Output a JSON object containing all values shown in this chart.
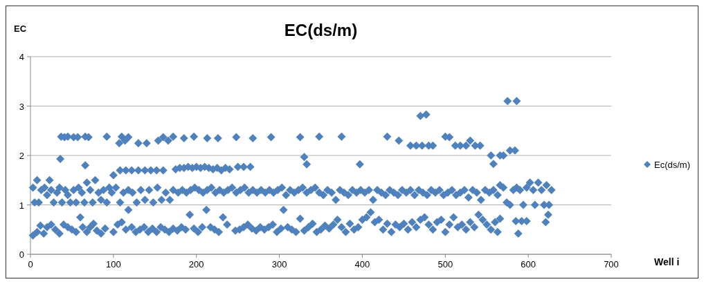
{
  "chart_data": {
    "type": "scatter",
    "title": "EC(ds/m)",
    "xlabel": "Well i",
    "ylabel": "EC",
    "xlim": [
      0,
      700
    ],
    "xticks": [
      0,
      100,
      200,
      300,
      400,
      500,
      600,
      700
    ],
    "ylim": [
      0,
      4
    ],
    "yticks": [
      0,
      1,
      2,
      3,
      4
    ],
    "grid": "y",
    "legend": "right",
    "marker": "diamond",
    "series": [
      {
        "name": "Ec(ds/m)",
        "color": "#4f81bd",
        "x": [
          3,
          5,
          8,
          10,
          13,
          17,
          20,
          23,
          25,
          28,
          32,
          35,
          38,
          42,
          45,
          48,
          52,
          55,
          58,
          62,
          65,
          68,
          72,
          75,
          78,
          82,
          85,
          88,
          92,
          95,
          98,
          103,
          108,
          112,
          118,
          123,
          128,
          133,
          138,
          143,
          148,
          153,
          158,
          163,
          168,
          172,
          178,
          183,
          188,
          193,
          198,
          203,
          208,
          213,
          218,
          223,
          228,
          233,
          238,
          243,
          248,
          253,
          258,
          263,
          268,
          273,
          278,
          283,
          288,
          293,
          298,
          303,
          308,
          313,
          318,
          323,
          328,
          333,
          338,
          343,
          348,
          353,
          358,
          363,
          368,
          373,
          378,
          383,
          388,
          393,
          398,
          403,
          408,
          413,
          418,
          423,
          428,
          433,
          438,
          443,
          448,
          453,
          458,
          463,
          468,
          473,
          478,
          483,
          488,
          493,
          498,
          503,
          508,
          513,
          518,
          523,
          528,
          533,
          538,
          543,
          548,
          553,
          558,
          563,
          566,
          570,
          574,
          578,
          582,
          586,
          590,
          594,
          598,
          602,
          606,
          608,
          612,
          616,
          619,
          622,
          625,
          628,
          3,
          8,
          12,
          16,
          20,
          25,
          30,
          35,
          40,
          45,
          50,
          55,
          60,
          63,
          68,
          72,
          76,
          80,
          85,
          90,
          100,
          105,
          110,
          115,
          118,
          122,
          127,
          132,
          137,
          142,
          147,
          152,
          157,
          162,
          167,
          172,
          177,
          182,
          187,
          192,
          197,
          202,
          207,
          212,
          217,
          222,
          227,
          232,
          237,
          247,
          252,
          257,
          262,
          267,
          272,
          277,
          282,
          287,
          292,
          297,
          302,
          305,
          310,
          315,
          320,
          325,
          330,
          335,
          340,
          345,
          350,
          355,
          360,
          365,
          370,
          375,
          380,
          385,
          390,
          395,
          400,
          405,
          410,
          415,
          420,
          425,
          430,
          435,
          440,
          445,
          450,
          455,
          460,
          465,
          470,
          475,
          480,
          485,
          490,
          495,
          500,
          505,
          510,
          515,
          520,
          525,
          530,
          535,
          540,
          545,
          550,
          555,
          560,
          563,
          566,
          585,
          588,
          592,
          598,
          621,
          624,
          100,
          108,
          115,
          122,
          130,
          138,
          145,
          152,
          160,
          175,
          180,
          185,
          190,
          195,
          200,
          205,
          210,
          215,
          220,
          225,
          230,
          235,
          240,
          250,
          257,
          265,
          36,
          66,
          330,
          333,
          397,
          37,
          41,
          45,
          52,
          57,
          66,
          70,
          92,
          107,
          110,
          114,
          118,
          130,
          140,
          154,
          160,
          166,
          172,
          185,
          197,
          213,
          226,
          248,
          268,
          290,
          325,
          348,
          375,
          430,
          444,
          458,
          465,
          472,
          480,
          485,
          500,
          505,
          512,
          518,
          525,
          530,
          536,
          542,
          555,
          558,
          566,
          570,
          578,
          584,
          470,
          477,
          575,
          586
        ],
        "values": [
          1.35,
          1.05,
          1.5,
          1.05,
          1.3,
          1.35,
          1.2,
          1.5,
          1.3,
          1.05,
          1.25,
          1.35,
          1.05,
          1.3,
          1.2,
          1.05,
          1.3,
          1.05,
          1.35,
          1.25,
          1.05,
          1.45,
          1.3,
          1.05,
          1.5,
          1.25,
          1.1,
          1.3,
          1.05,
          1.35,
          1.25,
          1.35,
          1.05,
          1.25,
          1.3,
          1.25,
          1.05,
          1.3,
          1.1,
          1.3,
          1.05,
          1.35,
          1.1,
          1.25,
          1.1,
          1.3,
          1.25,
          1.3,
          1.25,
          1.3,
          1.35,
          1.3,
          1.25,
          1.3,
          1.35,
          1.25,
          1.3,
          1.25,
          1.3,
          1.35,
          1.25,
          1.3,
          1.35,
          1.25,
          1.3,
          1.25,
          1.3,
          1.25,
          1.3,
          1.25,
          1.3,
          1.35,
          1.2,
          1.3,
          1.25,
          1.3,
          1.35,
          1.25,
          1.3,
          1.35,
          1.25,
          1.2,
          1.3,
          1.25,
          1.1,
          1.3,
          1.25,
          1.2,
          1.3,
          1.25,
          1.3,
          1.25,
          1.3,
          1.1,
          1.3,
          1.25,
          1.2,
          1.3,
          1.25,
          1.2,
          1.3,
          1.25,
          1.3,
          1.2,
          1.3,
          1.25,
          1.2,
          1.3,
          1.25,
          1.3,
          1.2,
          1.25,
          1.3,
          1.2,
          1.25,
          1.3,
          1.15,
          1.3,
          1.25,
          1.1,
          1.3,
          1.25,
          1.3,
          1.2,
          1.4,
          1.35,
          1.05,
          1.0,
          1.3,
          1.35,
          1.3,
          1.0,
          1.35,
          1.45,
          1.3,
          1.0,
          1.45,
          1.3,
          1.0,
          1.4,
          1.0,
          1.3,
          0.38,
          0.45,
          0.58,
          0.42,
          0.55,
          0.6,
          0.5,
          0.42,
          0.6,
          0.55,
          0.5,
          0.45,
          0.75,
          0.55,
          0.45,
          0.55,
          0.62,
          0.48,
          0.42,
          0.52,
          0.45,
          0.6,
          0.65,
          0.5,
          0.9,
          0.55,
          0.45,
          0.5,
          0.55,
          0.45,
          0.52,
          0.45,
          0.55,
          0.5,
          0.45,
          0.52,
          0.48,
          0.55,
          0.5,
          0.8,
          0.52,
          0.45,
          0.55,
          0.9,
          0.55,
          0.5,
          0.45,
          0.75,
          0.6,
          0.48,
          0.5,
          0.55,
          0.6,
          0.52,
          0.48,
          0.55,
          0.5,
          0.55,
          0.6,
          0.45,
          0.52,
          0.9,
          0.55,
          0.5,
          0.45,
          0.72,
          0.48,
          0.55,
          0.62,
          0.45,
          0.5,
          0.58,
          0.52,
          0.6,
          0.7,
          0.55,
          0.45,
          0.62,
          0.5,
          0.55,
          0.7,
          0.75,
          0.85,
          0.65,
          0.7,
          0.5,
          0.62,
          0.45,
          0.6,
          0.55,
          0.62,
          0.5,
          0.65,
          0.55,
          0.7,
          0.75,
          0.6,
          0.5,
          0.65,
          0.7,
          0.45,
          0.6,
          0.75,
          0.55,
          0.6,
          0.5,
          0.65,
          0.55,
          0.8,
          0.7,
          0.6,
          0.5,
          0.65,
          0.45,
          0.72,
          0.67,
          0.42,
          0.67,
          0.67,
          0.65,
          0.8,
          1.6,
          1.7,
          1.7,
          1.7,
          1.7,
          1.7,
          1.7,
          1.7,
          1.7,
          1.72,
          1.75,
          1.75,
          1.77,
          1.75,
          1.77,
          1.75,
          1.77,
          1.75,
          1.72,
          1.75,
          1.7,
          1.75,
          1.72,
          1.77,
          1.77,
          1.77,
          1.93,
          1.8,
          1.97,
          1.82,
          1.82,
          2.38,
          2.37,
          2.38,
          2.37,
          2.37,
          2.38,
          2.37,
          2.38,
          2.25,
          2.38,
          2.3,
          2.37,
          2.25,
          2.25,
          2.3,
          2.37,
          2.3,
          2.38,
          2.35,
          2.38,
          2.35,
          2.35,
          2.37,
          2.35,
          2.37,
          2.37,
          2.38,
          2.38,
          2.38,
          2.3,
          2.2,
          2.2,
          2.2,
          2.2,
          2.2,
          2.38,
          2.37,
          2.2,
          2.2,
          2.2,
          2.3,
          2.2,
          2.2,
          2.0,
          1.83,
          2.0,
          2.0,
          2.1,
          2.1,
          2.8,
          2.83,
          3.1,
          3.1
        ]
      }
    ]
  }
}
